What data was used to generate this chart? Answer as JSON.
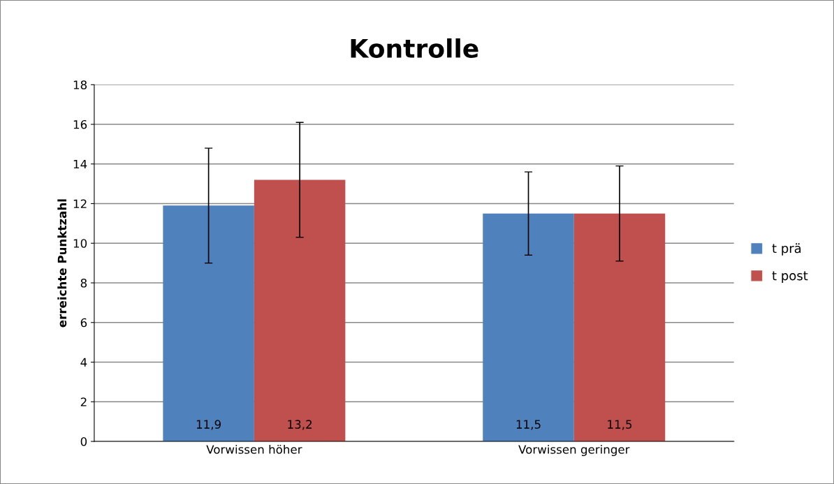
{
  "chart_data": {
    "type": "bar",
    "title": "Kontrolle",
    "ylabel": "erreichte Punktzahl",
    "categories": [
      "Vorwissen höher",
      "Vorwissen geringer"
    ],
    "series": [
      {
        "name": "t prä",
        "color": "#4f81bd",
        "values": [
          11.9,
          11.5
        ],
        "errors": [
          2.9,
          2.1
        ],
        "value_labels": [
          "11,9",
          "11,5"
        ]
      },
      {
        "name": "t post",
        "color": "#c0504d",
        "values": [
          13.2,
          11.5
        ],
        "errors": [
          2.9,
          2.4
        ],
        "value_labels": [
          "13,2",
          "11,5"
        ]
      }
    ],
    "ylim": [
      0,
      18
    ],
    "yticks": [
      0,
      2,
      4,
      6,
      8,
      10,
      12,
      14,
      16,
      18
    ],
    "grid": "y",
    "legend": "right"
  }
}
